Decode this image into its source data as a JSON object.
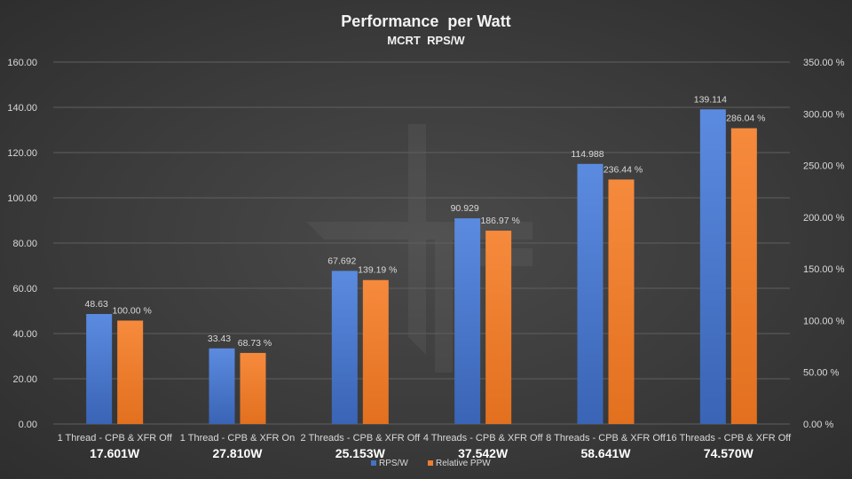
{
  "chart_data": {
    "type": "bar",
    "title": "Performance  per Watt",
    "subtitle": "MCRT  RPS/W",
    "categories": [
      "1 Thread - CPB & XFR Off",
      "1 Thread - CPB & XFR On",
      "2 Threads - CPB & XFR Off",
      "4 Threads - CPB & XFR Off",
      "8 Threads - CPB & XFR Off",
      "16 Threads - CPB & XFR Off"
    ],
    "watts": [
      "17.601W",
      "27.810W",
      "25.153W",
      "37.542W",
      "58.641W",
      "74.570W"
    ],
    "series": [
      {
        "name": "RPS/W",
        "axis": "left",
        "color": "#4472c4",
        "values": [
          48.63,
          33.43,
          67.692,
          90.929,
          114.988,
          139.114
        ],
        "labels": [
          "48.63",
          "33.43",
          "67.692",
          "90.929",
          "114.988",
          "139.114"
        ]
      },
      {
        "name": "Relative PPW",
        "axis": "right",
        "color": "#ed7d31",
        "values": [
          100.0,
          68.73,
          139.19,
          186.97,
          236.44,
          286.04
        ],
        "labels": [
          "100.00 %",
          "68.73 %",
          "139.19 %",
          "186.97 %",
          "236.44 %",
          "286.04 %"
        ]
      }
    ],
    "y_left": {
      "min": 0,
      "max": 160,
      "ticks": [
        "0.00",
        "20.00",
        "40.00",
        "60.00",
        "80.00",
        "100.00",
        "120.00",
        "140.00",
        "160.00"
      ]
    },
    "y_right": {
      "min": 0,
      "max": 350,
      "ticks": [
        "0.00 %",
        "50.00 %",
        "100.00 %",
        "150.00 %",
        "200.00 %",
        "250.00 %",
        "300.00 %",
        "350.00 %"
      ]
    },
    "grid": true,
    "legend_position": "bottom"
  }
}
